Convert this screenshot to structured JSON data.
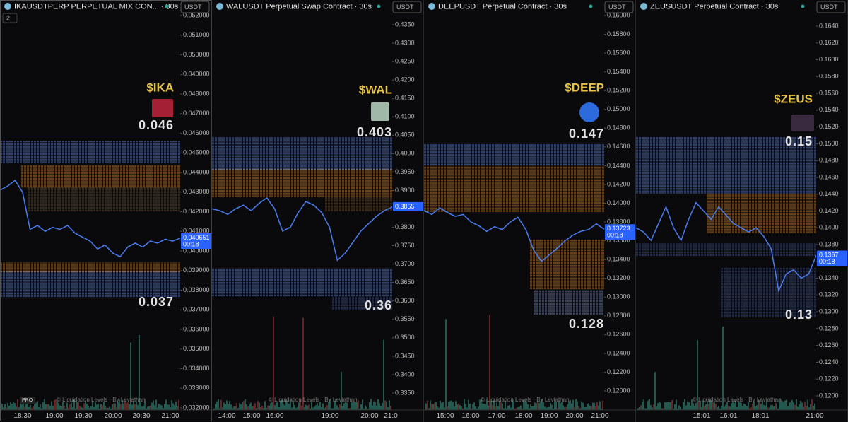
{
  "panels": [
    {
      "title": "IKAUSDTPERP PERPETUAL MIX CON... · 30s",
      "currency": "USDT",
      "badge": "2",
      "logo": "PRO",
      "token": "$IKA",
      "high": "0.046",
      "low": "0.037",
      "price": "0.040651",
      "timer": "00:18",
      "watermark": "© Liquidation Levels · By Leviathan",
      "ylim": [
        0.052793,
        0.031892
      ],
      "yticks": [
        {
          "value": 0.052,
          "label": "0.052000"
        },
        {
          "value": 0.051,
          "label": "0.051000"
        },
        {
          "value": 0.05,
          "label": "0.050000"
        },
        {
          "value": 0.049,
          "label": "0.049000"
        },
        {
          "value": 0.048,
          "label": "0.048000"
        },
        {
          "value": 0.047,
          "label": "0.047000"
        },
        {
          "value": 0.046,
          "label": "0.046000"
        },
        {
          "value": 0.045,
          "label": "0.045000"
        },
        {
          "value": 0.044,
          "label": "0.044000"
        },
        {
          "value": 0.043,
          "label": "0.043000"
        },
        {
          "value": 0.042,
          "label": "0.042000"
        },
        {
          "value": 0.041,
          "label": "0.041000"
        },
        {
          "value": 0.04,
          "label": "0.040000"
        },
        {
          "value": 0.039,
          "label": "0.039000"
        },
        {
          "value": 0.038,
          "label": "0.038000"
        },
        {
          "value": 0.037,
          "label": "0.037000"
        },
        {
          "value": 0.036,
          "label": "0.036000"
        },
        {
          "value": 0.035,
          "label": "0.035000"
        },
        {
          "value": 0.034,
          "label": "0.034000"
        },
        {
          "value": 0.033,
          "label": "0.033000"
        },
        {
          "value": 0.032,
          "label": "0.032000"
        }
      ],
      "times": [
        "18:30",
        "19:00",
        "19:30",
        "20:00",
        "20:30",
        "21:00"
      ],
      "prices": [
        0.0431,
        0.0433,
        0.0436,
        0.043,
        0.0411,
        0.0413,
        0.041,
        0.0412,
        0.0411,
        0.0413,
        0.0409,
        0.0407,
        0.0405,
        0.0401,
        0.0403,
        0.0399,
        0.0397,
        0.0402,
        0.0404,
        0.0402,
        0.0405,
        0.0404,
        0.0406,
        0.0405,
        0.04065
      ]
    },
    {
      "title": "WALUSDT Perpetual Swap Contract · 30s",
      "currency": "USDT",
      "token": "$WAL",
      "high": "0.403",
      "low": "0.36",
      "price": "0.3855",
      "watermark": "© Liquidation Levels · By Leviathan",
      "ylim": [
        0.44172,
        0.33039
      ],
      "yticks": [
        {
          "value": 0.435,
          "label": "0.4350"
        },
        {
          "value": 0.43,
          "label": "0.4300"
        },
        {
          "value": 0.425,
          "label": "0.4250"
        },
        {
          "value": 0.42,
          "label": "0.4200"
        },
        {
          "value": 0.415,
          "label": "0.4150"
        },
        {
          "value": 0.41,
          "label": "0.4100"
        },
        {
          "value": 0.405,
          "label": "0.4050"
        },
        {
          "value": 0.4,
          "label": "0.4000"
        },
        {
          "value": 0.395,
          "label": "0.3950"
        },
        {
          "value": 0.39,
          "label": "0.3900"
        },
        {
          "value": 0.385,
          "label": "0.3850"
        },
        {
          "value": 0.38,
          "label": "0.3800"
        },
        {
          "value": 0.375,
          "label": "0.3750"
        },
        {
          "value": 0.37,
          "label": "0.3700"
        },
        {
          "value": 0.365,
          "label": "0.3650"
        },
        {
          "value": 0.36,
          "label": "0.3600"
        },
        {
          "value": 0.355,
          "label": "0.3550"
        },
        {
          "value": 0.35,
          "label": "0.3500"
        },
        {
          "value": 0.345,
          "label": "0.3450"
        },
        {
          "value": 0.34,
          "label": "0.3400"
        },
        {
          "value": 0.335,
          "label": "0.3350"
        }
      ],
      "times": [
        "14:00",
        "15:00",
        "16:00",
        "19:00",
        "20:00",
        "21:0"
      ],
      "prices": [
        0.385,
        0.3845,
        0.3835,
        0.385,
        0.386,
        0.3845,
        0.3865,
        0.388,
        0.385,
        0.379,
        0.38,
        0.384,
        0.387,
        0.386,
        0.384,
        0.38,
        0.371,
        0.373,
        0.376,
        0.379,
        0.381,
        0.383,
        0.3845,
        0.3855
      ]
    },
    {
      "title": "DEEPUSDT Perpetual Contract · 30s",
      "currency": "USDT",
      "token": "$DEEP",
      "high": "0.147",
      "low": "0.128",
      "price": "0.13723",
      "timer": "00:18",
      "watermark": "© Liquidation Levels · By Leviathan",
      "ylim": [
        0.161657,
        0.117966
      ],
      "yticks": [
        {
          "value": 0.16,
          "label": "0.16000"
        },
        {
          "value": 0.158,
          "label": "0.15800"
        },
        {
          "value": 0.156,
          "label": "0.15600"
        },
        {
          "value": 0.154,
          "label": "0.15400"
        },
        {
          "value": 0.152,
          "label": "0.15200"
        },
        {
          "value": 0.15,
          "label": "0.15000"
        },
        {
          "value": 0.148,
          "label": "0.14800"
        },
        {
          "value": 0.146,
          "label": "0.14600"
        },
        {
          "value": 0.144,
          "label": "0.14400"
        },
        {
          "value": 0.142,
          "label": "0.14200"
        },
        {
          "value": 0.14,
          "label": "0.14000"
        },
        {
          "value": 0.138,
          "label": "0.13800"
        },
        {
          "value": 0.136,
          "label": "0.13600"
        },
        {
          "value": 0.134,
          "label": "0.13400"
        },
        {
          "value": 0.132,
          "label": "0.13200"
        },
        {
          "value": 0.13,
          "label": "0.13000"
        },
        {
          "value": 0.128,
          "label": "0.12800"
        },
        {
          "value": 0.126,
          "label": "0.12600"
        },
        {
          "value": 0.124,
          "label": "0.12400"
        },
        {
          "value": 0.122,
          "label": "0.12200"
        },
        {
          "value": 0.12,
          "label": "0.12000"
        }
      ],
      "times": [
        "15:00",
        "16:00",
        "17:00",
        "18:00",
        "19:00",
        "20:00",
        "21:00"
      ],
      "prices": [
        0.1392,
        0.1388,
        0.1395,
        0.139,
        0.1386,
        0.1388,
        0.138,
        0.1376,
        0.137,
        0.1375,
        0.1372,
        0.138,
        0.1385,
        0.1372,
        0.135,
        0.1338,
        0.1345,
        0.1352,
        0.136,
        0.1366,
        0.137,
        0.1372,
        0.1378,
        0.13723
      ]
    },
    {
      "title": "ZEUSUSDT Perpetual Contract · 30s",
      "currency": "USDT",
      "token": "$ZEUS",
      "high": "0.15",
      "low": "0.13",
      "price": "0.1367",
      "timer": "00:18",
      "watermark": "© Liquidation Levels · By Leviathan",
      "ylim": [
        0.167113,
        0.118317
      ],
      "yticks": [
        {
          "value": 0.164,
          "label": "0.1640"
        },
        {
          "value": 0.162,
          "label": "0.1620"
        },
        {
          "value": 0.16,
          "label": "0.1600"
        },
        {
          "value": 0.158,
          "label": "0.1580"
        },
        {
          "value": 0.156,
          "label": "0.1560"
        },
        {
          "value": 0.154,
          "label": "0.1540"
        },
        {
          "value": 0.152,
          "label": "0.1520"
        },
        {
          "value": 0.15,
          "label": "0.1500"
        },
        {
          "value": 0.148,
          "label": "0.1480"
        },
        {
          "value": 0.146,
          "label": "0.1460"
        },
        {
          "value": 0.144,
          "label": "0.1440"
        },
        {
          "value": 0.142,
          "label": "0.1420"
        },
        {
          "value": 0.14,
          "label": "0.1400"
        },
        {
          "value": 0.138,
          "label": "0.1380"
        },
        {
          "value": 0.136,
          "label": "0.1360"
        },
        {
          "value": 0.134,
          "label": "0.1340"
        },
        {
          "value": 0.132,
          "label": "0.1320"
        },
        {
          "value": 0.13,
          "label": "0.1300"
        },
        {
          "value": 0.128,
          "label": "0.1280"
        },
        {
          "value": 0.126,
          "label": "0.1260"
        },
        {
          "value": 0.124,
          "label": "0.1240"
        },
        {
          "value": 0.122,
          "label": "0.1220"
        },
        {
          "value": 0.12,
          "label": "0.1200"
        }
      ],
      "times": [
        "15:01",
        "16:01",
        "18:01",
        "21:00"
      ],
      "prices": [
        0.14,
        0.1395,
        0.1385,
        0.1405,
        0.1425,
        0.14,
        0.1385,
        0.141,
        0.143,
        0.142,
        0.141,
        0.1425,
        0.1415,
        0.1405,
        0.14,
        0.1395,
        0.14,
        0.139,
        0.1375,
        0.1325,
        0.1345,
        0.135,
        0.134,
        0.1345,
        0.1367
      ]
    }
  ]
}
